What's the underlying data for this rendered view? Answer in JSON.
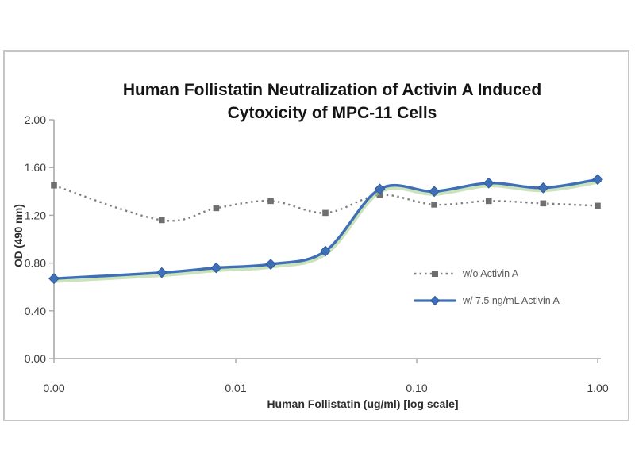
{
  "chart_data": {
    "type": "line",
    "title_line1": "Human Follistatin Neutralization of Activin A Induced",
    "title_line2": "Cytoxicity of MPC-11 Cells",
    "xlabel": "Human Follistatin (ug/ml) [log scale]",
    "ylabel": "OD (490 nm)",
    "x_scale": "log (zero plotted at axis origin)",
    "xlim": [
      0,
      1.0
    ],
    "ylim": [
      0.0,
      2.0
    ],
    "grid": false,
    "legend_position": "inside middle-right",
    "x": [
      0,
      0.0039,
      0.0078,
      0.0156,
      0.0313,
      0.0625,
      0.125,
      0.25,
      0.5,
      1.0
    ],
    "x_ticks": [
      {
        "v": 0,
        "label": "0.00"
      },
      {
        "v": 0.01,
        "label": "0.01"
      },
      {
        "v": 0.1,
        "label": "0.10"
      },
      {
        "v": 1.0,
        "label": "1.00"
      }
    ],
    "y_ticks": [
      {
        "v": 0.0,
        "label": "0.00"
      },
      {
        "v": 0.4,
        "label": "0.40"
      },
      {
        "v": 0.8,
        "label": "0.80"
      },
      {
        "v": 1.2,
        "label": "1.20"
      },
      {
        "v": 1.6,
        "label": "1.60"
      },
      {
        "v": 2.0,
        "label": "2.00"
      }
    ],
    "series": [
      {
        "name": "w/o Activin A",
        "line_style": "dotted",
        "marker": "square",
        "color": "#7f7f7f",
        "marker_color": "#6f6f6f",
        "values": [
          1.45,
          1.16,
          1.26,
          1.32,
          1.22,
          1.37,
          1.29,
          1.32,
          1.3,
          1.28
        ]
      },
      {
        "name": "w/ 7.5 ng/mL Activin A",
        "line_style": "solid",
        "marker": "diamond",
        "color": "#3e6fb7",
        "marker_color": "#3e6fb7",
        "marker_edge": "#2d5c9e",
        "glow_color": "#a9d18e",
        "values": [
          0.67,
          0.72,
          0.76,
          0.79,
          0.9,
          1.42,
          1.4,
          1.47,
          1.43,
          1.5
        ]
      }
    ],
    "axis_color": "#a8a8a8",
    "tick_label_color": "#3d3d3d"
  }
}
